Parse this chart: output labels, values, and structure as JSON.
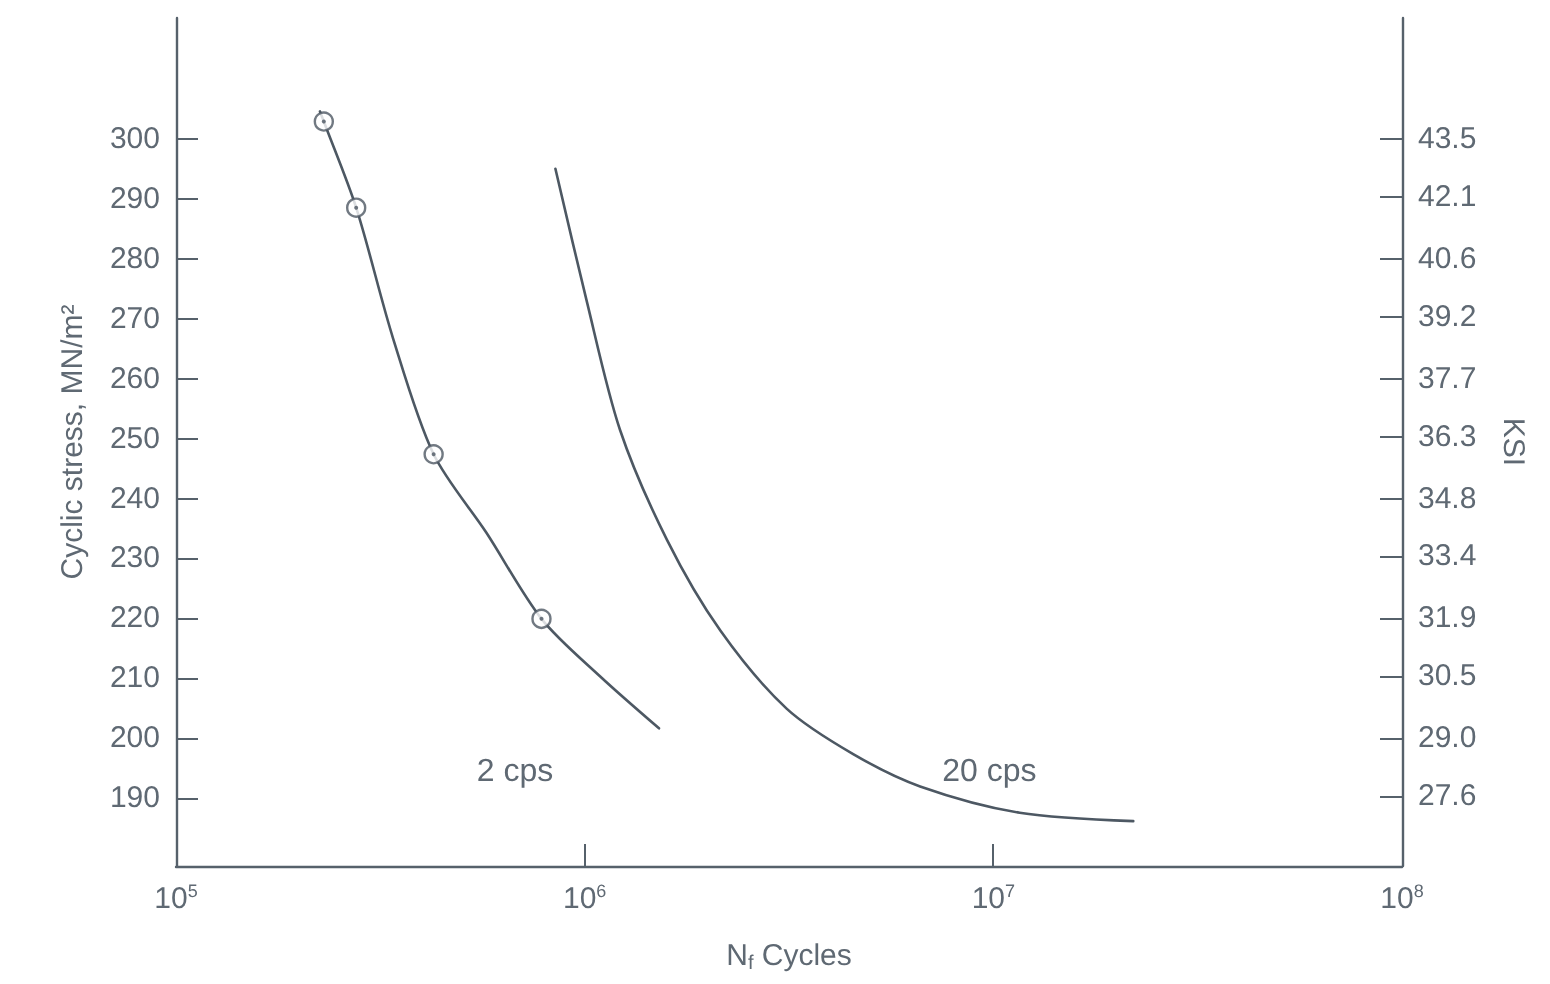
{
  "chart_data": {
    "type": "line",
    "xlabel": "N$_{f}$ Cycles",
    "ylabel": "Cyclic stress, MN/m²",
    "y2label": "KSI",
    "log": "x",
    "grid": false,
    "line_style": "solid",
    "xlim": [
      100000,
      100000000
    ],
    "xticks": [
      {
        "value": 100000,
        "label": "10$^{5}$"
      },
      {
        "value": 1000000,
        "label": "10$^{6}$"
      },
      {
        "value": 10000000,
        "label": "10$^{7}$"
      },
      {
        "value": 100000000,
        "label": "10$^{8}$"
      }
    ],
    "ylim": [
      178.6,
      320.3
    ],
    "yticks": [
      190,
      200,
      210,
      220,
      230,
      240,
      250,
      260,
      270,
      280,
      290,
      300
    ],
    "y2lim": [
      25.9,
      46.44
    ],
    "y2ticks": [
      27.6,
      {
        "value": 29,
        "label": "29.0"
      },
      30.5,
      31.9,
      33.4,
      34.8,
      36.3,
      37.7,
      39.2,
      40.6,
      42.1,
      43.5
    ],
    "series": [
      {
        "marker": "none",
        "color": "#4d5863",
        "x": [
          225000,
          230000,
          276000,
          340000,
          427000,
          576000,
          784000,
          1090000,
          1520000
        ],
        "values": [
          304.7,
          303,
          288.6,
          266.7,
          247.4,
          234.2,
          219.9,
          210.3,
          201.6
        ]
      },
      {
        "marker": "none",
        "color": "#4d5863",
        "x": [
          848000,
          1010000,
          1220000,
          1590000,
          2150000,
          3120000,
          4540000,
          6620000,
          11600000,
          22000000
        ],
        "values": [
          295.1,
          273.2,
          251.5,
          233.1,
          217.9,
          204.9,
          197.3,
          191.9,
          187.5,
          186.1
        ]
      },
      {
        "type": "scatter",
        "marker": "circle",
        "color": "#4d5863",
        "x": [
          230000,
          276000,
          427000,
          784000
        ],
        "values": [
          303,
          288.6,
          247.4,
          219.9
        ]
      }
    ],
    "annotations": [
      "2 cps",
      "20 cps"
    ]
  }
}
